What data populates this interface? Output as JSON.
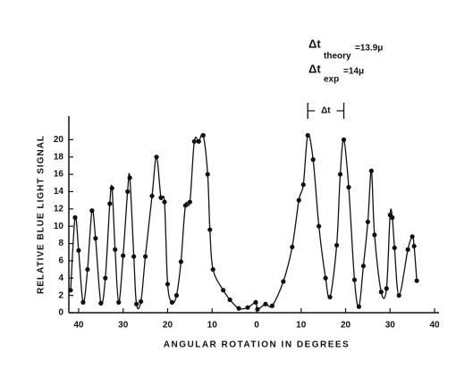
{
  "chart_data": {
    "type": "scatter",
    "y_label": "RELATIVE BLUE LIGHT SIGNAL",
    "x_label": "ANGULAR ROTATION IN DEGREES",
    "annotations": {
      "theory": {
        "symbol": "Δt",
        "sub": "theory",
        "text": "=13.9μ"
      },
      "exp": {
        "symbol": "Δt",
        "sub": "exp",
        "text": "=14μ"
      },
      "bracket": {
        "text": "Δt",
        "x": [
          11.5,
          19.6
        ]
      }
    },
    "smooth_line": true,
    "color": "#111111",
    "xlim": [
      -42.2,
      41
    ],
    "ylim": [
      0,
      22
    ],
    "xticks": [
      {
        "value": -40,
        "label": "40"
      },
      {
        "value": -30,
        "label": "30"
      },
      {
        "value": -20,
        "label": "20"
      },
      {
        "value": -10,
        "label": "10"
      },
      0,
      10,
      20,
      30,
      40
    ],
    "yticks": [
      0,
      2,
      4,
      6,
      8,
      10,
      12,
      14,
      16,
      18,
      20
    ],
    "x": [
      -41.8,
      -40.8,
      -40,
      -39,
      -38,
      -37,
      -36.2,
      -35,
      -34,
      -33,
      -32.5,
      -31.8,
      -31,
      -30,
      -29,
      -28.5,
      -27.6,
      -27,
      -26,
      -25,
      -23.5,
      -22.5,
      -21.5,
      -20.7,
      -20,
      -19,
      -18,
      -17,
      -16,
      -15,
      -14,
      -13,
      -12,
      -11,
      -10.5,
      -9.8,
      -7.5,
      -6,
      -4,
      -2,
      -0.2,
      0.2,
      2,
      3.5,
      6,
      8,
      9.5,
      10.5,
      11.5,
      12.7,
      14,
      15.5,
      16.5,
      18,
      18.8,
      19.6,
      20.7,
      22,
      23,
      24,
      25,
      25.8,
      26.5,
      28,
      29.2,
      30,
      30.5,
      31,
      32,
      34,
      35,
      35.4,
      36
    ],
    "values": [
      2.6,
      11,
      7.2,
      1.2,
      5,
      11.8,
      8.6,
      1.1,
      4,
      12.6,
      14.4,
      7.3,
      1.2,
      6.6,
      14,
      15.6,
      6.5,
      1,
      1.3,
      6.5,
      13.5,
      18,
      13.3,
      12.8,
      3.3,
      1.2,
      2,
      5.9,
      12.4,
      12.8,
      19.8,
      19.8,
      20.5,
      16,
      9.6,
      5,
      2.6,
      1.5,
      0.5,
      0.6,
      1.2,
      0.4,
      1,
      0.8,
      3.6,
      7.6,
      13,
      14.8,
      20.5,
      17.7,
      10,
      4,
      1.8,
      7.8,
      16,
      20,
      14.5,
      3.8,
      0.7,
      5.4,
      10.5,
      16.4,
      9,
      2.4,
      2.8,
      11.3,
      11,
      7.5,
      2,
      7.3,
      8.8,
      7.7,
      3.7
    ]
  }
}
